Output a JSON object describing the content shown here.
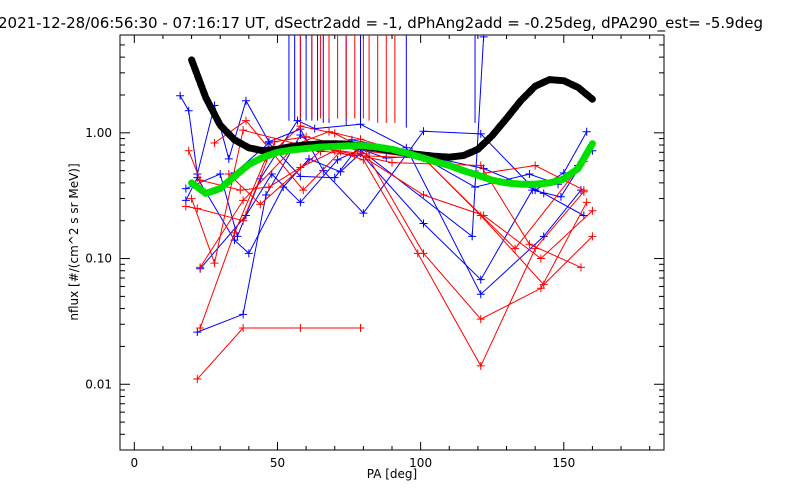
{
  "chart_data": {
    "type": "line",
    "title": "2021-12-28/06:56:30 - 07:16:17 UT, dSectr2add = -1, dPhAng2add = -0.25deg, dPA290_est=  -5.9deg",
    "xlabel": "PA [deg]",
    "ylabel": "nflux [#/(cm^2 s sr MeV)]",
    "xlim": [
      -5,
      185
    ],
    "ylim": [
      0.003,
      6
    ],
    "yscale": "log",
    "grid": false,
    "xticks": [
      0,
      50,
      100,
      150
    ],
    "xtick_labels": [
      "0",
      "50",
      "100",
      "150"
    ],
    "yticks": [
      0.01,
      0.1,
      1.0
    ],
    "ytick_labels": [
      "0.01",
      "0.10",
      "1.00"
    ],
    "colors": {
      "blue": "#0000ff",
      "red": "#ff0000",
      "fit_black": "#000000",
      "fit_green": "#00e000"
    },
    "series": [
      {
        "color": "blue",
        "x": [
          16,
          19,
          22,
          28,
          33,
          39,
          47,
          58,
          66,
          80,
          101,
          121,
          140,
          150,
          158
        ],
        "y": [
          1.97,
          1.5,
          0.47,
          1.65,
          0.62,
          1.8,
          0.85,
          1.07,
          0.5,
          0.23,
          1.03,
          0.98,
          0.35,
          0.48,
          1.02
        ]
      },
      {
        "color": "blue",
        "x": [
          18,
          22,
          35,
          40,
          52,
          61,
          72,
          79,
          101,
          121,
          139,
          149,
          159
        ],
        "y": [
          0.29,
          0.44,
          0.14,
          0.11,
          0.37,
          0.62,
          0.49,
          0.69,
          0.19,
          0.068,
          0.35,
          0.31,
          0.72
        ]
      },
      {
        "color": "blue",
        "x": [
          22,
          38,
          46,
          58,
          65,
          76,
          97,
          119,
          138,
          148,
          155,
          160
        ],
        "y": [
          0.026,
          0.036,
          0.32,
          0.96,
          0.71,
          0.88,
          0.71,
          0.37,
          0.47,
          0.39,
          0.55,
          0.72
        ]
      },
      {
        "color": "blue",
        "x": [
          18,
          30,
          36,
          44,
          57,
          63,
          79,
          95,
          121,
          143,
          156
        ],
        "y": [
          0.36,
          0.47,
          0.15,
          0.43,
          1.25,
          1.08,
          1.17,
          0.76,
          0.052,
          0.15,
          0.35
        ]
      },
      {
        "color": "blue",
        "x": [
          23,
          39,
          48,
          58,
          71,
          79,
          88,
          101,
          122,
          143,
          157
        ],
        "y": [
          0.083,
          0.22,
          0.47,
          0.28,
          0.61,
          0.74,
          0.63,
          0.66,
          0.52,
          0.33,
          0.22
        ]
      },
      {
        "color": "blue",
        "x": [
          35,
          47,
          58,
          70,
          78,
          118,
          122
        ],
        "y": [
          0.48,
          0.83,
          0.45,
          0.44,
          0.76,
          0.15,
          5.8
        ]
      },
      {
        "color": "red",
        "x": [
          19,
          23,
          37,
          47,
          58,
          70,
          80,
          99,
          121,
          140,
          157
        ],
        "y": [
          0.72,
          0.42,
          0.35,
          0.37,
          0.53,
          0.72,
          0.61,
          0.11,
          0.014,
          0.12,
          0.34
        ]
      },
      {
        "color": "red",
        "x": [
          18,
          22,
          38,
          49,
          60,
          73,
          81,
          101,
          121,
          142,
          158
        ],
        "y": [
          0.26,
          0.25,
          0.2,
          0.85,
          0.93,
          0.79,
          0.68,
          0.11,
          0.033,
          0.058,
          0.28
        ]
      },
      {
        "color": "red",
        "x": [
          22,
          38,
          58,
          79
        ],
        "y": [
          0.011,
          0.028,
          0.028,
          0.028
        ]
      },
      {
        "color": "red",
        "x": [
          23,
          35,
          46,
          58,
          70,
          82,
          101,
          121,
          143,
          160
        ],
        "y": [
          0.028,
          0.16,
          0.63,
          1.13,
          0.99,
          0.71,
          0.63,
          0.22,
          0.062,
          0.15
        ]
      },
      {
        "color": "red",
        "x": [
          23,
          38,
          57,
          68,
          79,
          120,
          140,
          157
        ],
        "y": [
          0.085,
          0.29,
          0.82,
          1.02,
          0.89,
          0.47,
          0.55,
          0.35
        ]
      },
      {
        "color": "red",
        "x": [
          28,
          39,
          59,
          72,
          90,
          121,
          138,
          156
        ],
        "y": [
          0.83,
          1.25,
          0.35,
          0.71,
          0.58,
          0.55,
          0.13,
          0.085
        ]
      },
      {
        "color": "red",
        "x": [
          20,
          28,
          38,
          60,
          78,
          101,
          122,
          142,
          160
        ],
        "y": [
          0.3,
          0.092,
          1.05,
          0.78,
          0.69,
          0.32,
          0.22,
          0.1,
          0.24
        ]
      },
      {
        "color": "red",
        "x": [
          33,
          44,
          65,
          77,
          101,
          133,
          157
        ],
        "y": [
          0.47,
          0.27,
          0.72,
          0.66,
          0.63,
          0.12,
          0.59
        ]
      }
    ],
    "spikes": [
      {
        "color": "blue",
        "x": [
          54,
          56,
          58,
          60,
          62,
          64,
          66,
          68,
          74,
          79,
          95,
          119
        ],
        "y_from": [
          1.25,
          1.25,
          1.25,
          1.25,
          1.25,
          1.25,
          1.2,
          1.2,
          1.15,
          1.15,
          1.1,
          1.2
        ],
        "y_to": 6
      },
      {
        "color": "red",
        "x": [
          58,
          62,
          65,
          68,
          71,
          74,
          77,
          80,
          82,
          85,
          88,
          91
        ],
        "y_from": [
          1.3,
          1.3,
          1.3,
          1.3,
          1.3,
          1.3,
          1.3,
          1.3,
          1.25,
          1.2,
          1.2,
          1.2
        ],
        "y_to": 6
      }
    ],
    "fits": [
      {
        "name": "",
        "color": "fit_black",
        "style": "thick-dashed",
        "x": [
          20,
          25,
          30,
          35,
          40,
          45,
          50,
          55,
          60,
          65,
          70,
          75,
          80,
          85,
          90,
          95,
          100,
          105,
          110,
          115,
          120,
          125,
          130,
          135,
          140,
          145,
          150,
          155,
          160
        ],
        "y": [
          3.8,
          1.9,
          1.15,
          0.88,
          0.76,
          0.72,
          0.74,
          0.78,
          0.8,
          0.82,
          0.82,
          0.81,
          0.78,
          0.75,
          0.72,
          0.69,
          0.67,
          0.65,
          0.64,
          0.66,
          0.74,
          0.95,
          1.3,
          1.8,
          2.35,
          2.65,
          2.6,
          2.3,
          1.85
        ]
      },
      {
        "name": "",
        "color": "fit_green",
        "style": "thick-dashed",
        "x": [
          20,
          25,
          30,
          35,
          40,
          45,
          50,
          55,
          60,
          65,
          70,
          75,
          80,
          85,
          90,
          95,
          100,
          105,
          110,
          115,
          120,
          125,
          130,
          135,
          140,
          145,
          150,
          155,
          160
        ],
        "y": [
          0.4,
          0.33,
          0.36,
          0.45,
          0.56,
          0.64,
          0.7,
          0.73,
          0.75,
          0.77,
          0.78,
          0.79,
          0.79,
          0.77,
          0.74,
          0.69,
          0.64,
          0.59,
          0.55,
          0.5,
          0.46,
          0.42,
          0.4,
          0.39,
          0.39,
          0.4,
          0.43,
          0.52,
          0.82
        ]
      }
    ]
  }
}
